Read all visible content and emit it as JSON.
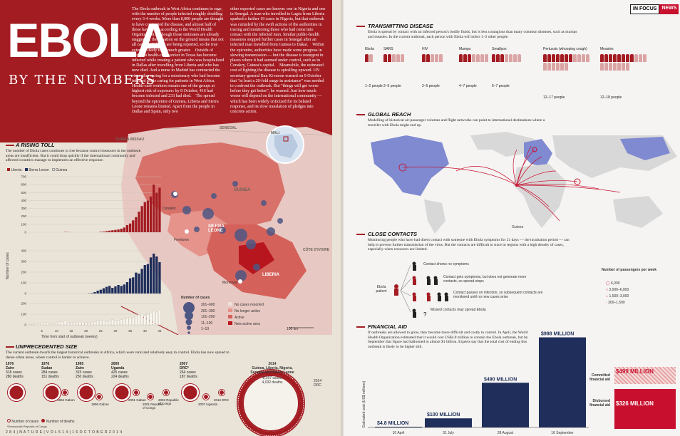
{
  "header": {
    "title": "EBOLA",
    "subtitle": "BY THE NUMBERS",
    "intro_col1": "The Ebola outbreak in West Africa continues to rage, with the number of people infected roughly doubling every 3-4 weeks. More than 8,000 people are thought to have contracted the disease, and almost half of those have died, according to the World Health Organization. Although those estimates are already staggering, the situation on the ground means that not all cases and deaths are being reported, so the true extent is likely to be much greater. Outside of Africa, a health-care worker in Texas has become infected while treating a patient who was hospitalized in Dallas after travelling from Liberia and who has now died. And a nurse in Madrid has contracted the virus after caring for a missionary who had become infected while caring for patients in West Africa. Health-care workers remain one of the groups at highest risk of exposure: by 8 October, 416 had become infected and 233 had died. The spread beyond the epicentre of Guinea, Liberia and Sierra Leone remains limited. Apart from the people in Dallas and Spain, only two",
    "intro_col2": "other exported cases are known: one in Nigeria and one in Senegal. A man who travelled to Lagos from Liberia sparked a further 19 cases in Nigeria, but that outbreak was curtailed by the swift actions of the authorities in tracing and monitoring those who had come into contact with the infected man. Similar public-health measures stopped further cases in Senegal after an infected man travelled from Guinea to Dakar. Within the epicentre, authorities have made some progress in slowing transmission — but the disease is resurgent in places where it had seemed under control, such as in Conakry, Guinea's capital. Meanwhile, the estimated cost of fighting the disease is spiralling upward. UN secretary-general Ban Ki-moon warned on 9 October that “at least a 20-fold surge in assistance” was needed to confront the outbreak. But “things will get worse before they get better”, he warned. Just how much worse will depend on the international community — which has been widely criticized for its belated response, and its slow translation of pledges into concrete action."
  },
  "rising_toll": {
    "heading": "A RISING TOLL",
    "text": "The number of Ebola cases continues to rise because control measures in the outbreak areas are insufficient. But it could drop quickly if the international community and affected countries manage to implement an effective response.",
    "legend": [
      "Liberia",
      "Sierra Leone",
      "Guinea"
    ],
    "y_label": "Number of cases",
    "x_label": "Time from start of outbreak (weeks)",
    "x_ticks": [
      "5",
      "10",
      "15",
      "20",
      "25",
      "30",
      "35",
      "40",
      "45"
    ],
    "y_ticks_top": [
      "700",
      "600",
      "500",
      "400",
      "300",
      "200",
      "100",
      "0"
    ],
    "y_ticks_mid": [
      "400",
      "300",
      "200",
      "100",
      "0"
    ],
    "y_ticks_bot": [
      "200",
      "100",
      "0"
    ]
  },
  "map": {
    "labels": {
      "guinea_bissau": "GUINEA-BISSAU",
      "senegal": "SENEGAL",
      "mali": "MALI",
      "guinea": "GUINEA",
      "sierra_leone": "SIERRA LEONE",
      "liberia": "LIBERIA",
      "cote": "CÔTE D'IVOIRE",
      "conakry": "Conakry",
      "freetown": "Freetown",
      "monrovia": "Monrovia",
      "scale": "100 km"
    },
    "size_legend_title": "Number of cases",
    "size_legend": [
      "301–600",
      "201–300",
      "101–200",
      "11–100",
      "1–10"
    ],
    "status_legend": [
      "No cases reported",
      "No longer active",
      "Active",
      "New active area"
    ]
  },
  "unprecedented": {
    "heading": "UNPRECEDENTED SIZE",
    "text": "The current outbreak dwarfs the largest historical outbreaks in Africa, which were rural and relatively easy to control. Ebola has now spread to dense urban areas, where control is harder to achieve.",
    "outbreaks_top": [
      {
        "year": "1976",
        "place": "Zaire",
        "cases": "318 cases",
        "deaths": "280 deaths"
      },
      {
        "year": "1976",
        "place": "Sudan",
        "cases": "284 cases",
        "deaths": "151 deaths"
      },
      {
        "year": "1995",
        "place": "Zaire",
        "cases": "315 cases",
        "deaths": "250 deaths"
      },
      {
        "year": "2000",
        "place": "Uganda",
        "cases": "425 cases",
        "deaths": "224 deaths"
      },
      {
        "year": "2007",
        "place": "DRC*",
        "cases": "264 cases",
        "deaths": "187 deaths"
      }
    ],
    "outbreaks_small": [
      {
        "year": "1994",
        "place": "Gabon"
      },
      {
        "year": "1996",
        "place": "Gabon"
      },
      {
        "year": "2001",
        "place": "Gabon"
      },
      {
        "year": "2001",
        "place": "Republic of Congo"
      },
      {
        "year": "2003",
        "place": "Republic of Congo"
      },
      {
        "year": "2007",
        "place": "Uganda"
      },
      {
        "year": "2012",
        "place": "DRC"
      }
    ],
    "current": {
      "year": "2014",
      "place": "Guinea, Liberia, Nigeria, Senegal and Sierra Leone",
      "cases": "8,397 cases",
      "deaths": "4,032 deaths"
    },
    "legend": [
      "Number of cases",
      "Number of deaths"
    ],
    "footnote": "*Democratic Republic of Congo",
    "tag_2014": "2014 DRC"
  },
  "footer": {
    "left": "2 8 4 | N A T U R E | V O L 5 1 4 | 1 6 O C T O B E R 2 0 1 4"
  },
  "infocus": {
    "label": "IN FOCUS",
    "tag": "NEWS"
  },
  "transmitting": {
    "heading": "TRANSMITTING DISEASE",
    "text": "Ebola is spread by contact with an infected person's bodily fluids, but is less contagious than many common diseases, such as mumps and measles. In the current outbreak, each person with Ebola will infect 1–2 other people.",
    "diseases": [
      {
        "name": "Ebola",
        "rate": "1–2 people"
      },
      {
        "name": "SARS",
        "rate": "2–5 people"
      },
      {
        "name": "HIV",
        "rate": "2–5 people"
      },
      {
        "name": "Mumps",
        "rate": "4–7 people"
      },
      {
        "name": "Smallpox",
        "rate": "5–7 people"
      },
      {
        "name": "Pertussis (whooping cough)",
        "rate": "12–17 people"
      },
      {
        "name": "Measles",
        "rate": "12–18 people"
      }
    ]
  },
  "global_reach": {
    "heading": "GLOBAL REACH",
    "text": "Modelling of historical air-passenger volumes and flight networks can point to international destinations where a traveller with Ebola might end up.",
    "guinea_label": "Guinea",
    "legend_title": "Number of passengers per week",
    "legend": [
      "6,000",
      "3,000–6,000",
      "1,500–3,000",
      "300–1,500"
    ]
  },
  "close_contacts": {
    "heading": "CLOSE CONTACTS",
    "text": "Monitoring people who have had direct contact with someone with Ebola symptoms for 21 days — the incubation period — can help to prevent further transmission of the virus. But the contacts are difficult to trace in regions with a high density of cases, especially when resources are limited.",
    "patient": "Ebola patient",
    "outcomes": [
      "Contact shows no symptoms",
      "Contact gets symptoms, but does not generate more contacts, so spread stops",
      "Contact passes on infection, so subsequent contacts are monitored until no new cases arise",
      "Missed contacts may spread Ebola"
    ]
  },
  "financial": {
    "heading": "FINANCIAL AID",
    "text": "If outbreaks are allowed to grow, they become more difficult and costly to control. In April, the World Health Organization estimated that it would cost US$4.8 million to contain the Ebola outbreak, but by September that figure had ballooned to almost $1 billion. Experts say that the total cost of ending this outbreak is likely to be higher still.",
    "y_label": "Estimated cost (US$ millions)",
    "committed_label": "Committed financial aid",
    "disbursed_label": "Disbursed financial aid",
    "committed_value": "$499 MILLION",
    "disbursed_value": "$326 MILLION"
  },
  "chart_data": [
    {
      "type": "bar",
      "title": "FINANCIAL AID",
      "ylabel": "Estimated cost (US$ millions)",
      "categories": [
        "10 April",
        "31 July",
        "28 August",
        "16 September"
      ],
      "values": [
        4.8,
        100,
        490,
        988
      ],
      "value_labels": [
        "$4.8 MILLION",
        "$100 MILLION",
        "$490 MILLION",
        "$988 MILLION"
      ],
      "ylim": [
        0,
        1000
      ]
    },
    {
      "type": "bar",
      "title": "A RISING TOLL",
      "xlabel": "Time from start of outbreak (weeks)",
      "ylabel": "Number of cases",
      "x": [
        1,
        2,
        3,
        4,
        5,
        6,
        7,
        8,
        9,
        10,
        11,
        12,
        13,
        14,
        15,
        16,
        17,
        18,
        19,
        20,
        21,
        22,
        23,
        24,
        25,
        26,
        27,
        28,
        29,
        30,
        31,
        32,
        33,
        34,
        35,
        36,
        37,
        38,
        39,
        40,
        41,
        42,
        43,
        44,
        45
      ],
      "series": [
        {
          "name": "Liberia",
          "ylim": [
            0,
            700
          ],
          "values": [
            0,
            0,
            0,
            0,
            0,
            0,
            0,
            0,
            0,
            0,
            0,
            0,
            3,
            2,
            0,
            0,
            0,
            0,
            0,
            0,
            0,
            0,
            0,
            0,
            5,
            8,
            14,
            20,
            25,
            30,
            35,
            45,
            60,
            90,
            110,
            150,
            190,
            260,
            330,
            380,
            400,
            450,
            600,
            500,
            560
          ]
        },
        {
          "name": "Sierra Leone",
          "ylim": [
            0,
            450
          ],
          "values": [
            0,
            0,
            0,
            0,
            0,
            0,
            0,
            0,
            0,
            0,
            0,
            0,
            0,
            0,
            0,
            0,
            0,
            0,
            0,
            0,
            2,
            5,
            15,
            30,
            40,
            55,
            70,
            80,
            60,
            75,
            90,
            80,
            95,
            120,
            160,
            170,
            220,
            210,
            260,
            300,
            310,
            380,
            420,
            390,
            330
          ]
        },
        {
          "name": "Guinea",
          "ylim": [
            0,
            250
          ],
          "values": [
            5,
            8,
            10,
            12,
            20,
            25,
            30,
            15,
            10,
            20,
            35,
            40,
            45,
            30,
            20,
            25,
            30,
            35,
            30,
            25,
            20,
            30,
            40,
            45,
            50,
            55,
            40,
            45,
            60,
            50,
            55,
            60,
            70,
            80,
            90,
            85,
            100,
            120,
            130,
            110,
            125,
            140,
            160,
            150,
            180
          ]
        }
      ]
    }
  ]
}
